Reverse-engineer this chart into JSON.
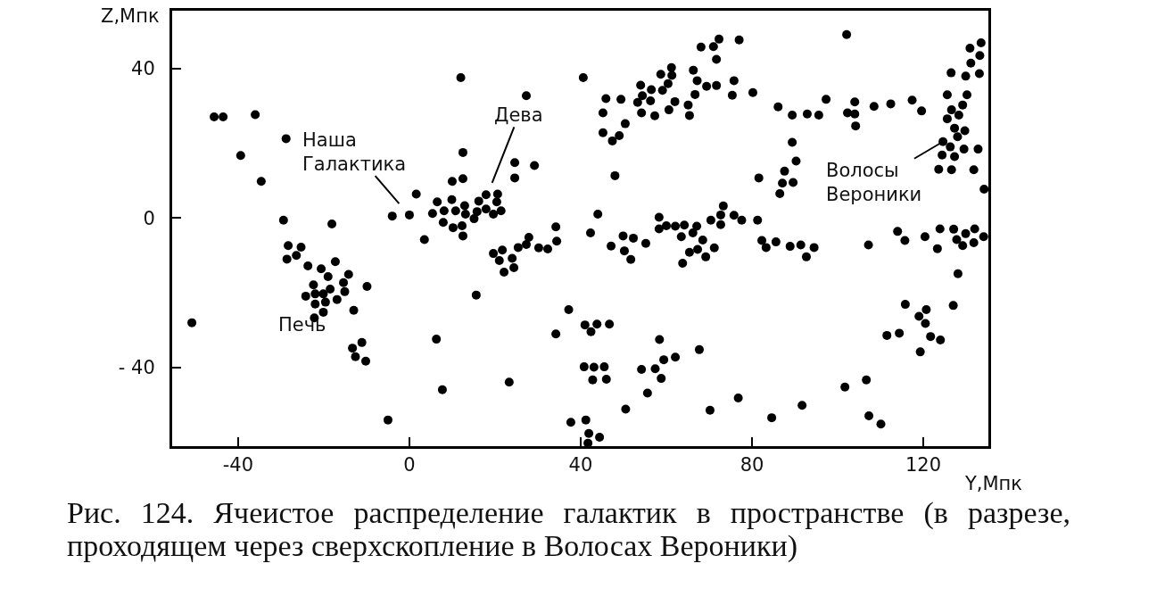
{
  "chart_data": {
    "type": "scatter",
    "xlabel": "Y,Мпк",
    "ylabel": "Z,Мпк",
    "color": "#000000",
    "marker": "circle",
    "grid": false,
    "legend": false,
    "xlim": [
      -55.4,
      135.2
    ],
    "ylim": [
      -61,
      55.4
    ],
    "xticks": [
      -40,
      0,
      40,
      80,
      120
    ],
    "yticks": [
      {
        "value": -40,
        "label": "- 40"
      },
      0,
      40
    ],
    "x": [
      -45.6,
      -43.5,
      -36.0,
      -28.8,
      -39.4,
      -34.6,
      -29.4,
      -18.1,
      -50.8,
      12.0,
      27.3,
      12.5,
      24.6,
      29.2,
      24.6,
      10.0,
      12.5,
      1.6,
      -4.0,
      0.0,
      6.5,
      9.9,
      5.4,
      8.1,
      10.8,
      12.9,
      13.1,
      16.2,
      17.9,
      20.6,
      20.4,
      17.9,
      15.8,
      19.6,
      21.4,
      15.1,
      7.9,
      10.2,
      12.3,
      12.5,
      3.5,
      34.2,
      34.4,
      27.9,
      27.3,
      25.4,
      30.2,
      32.3,
      19.6,
      21.7,
      21.0,
      24.0,
      24.4,
      22.1,
      15.6,
      37.2,
      34.2,
      6.3,
      7.7,
      23.3,
      -5.0,
      37.7,
      -28.3,
      -25.3,
      -28.6,
      -26.4,
      -23.7,
      -20.6,
      -17.3,
      -19.0,
      -14.2,
      -15.4,
      -22.4,
      -24.2,
      -22.0,
      -20.1,
      -18.5,
      -15.1,
      -9.9,
      -22.0,
      -19.6,
      -16.9,
      -13.0,
      -20.1,
      -22.2,
      -13.3,
      -11.1,
      -12.6,
      -10.2,
      44.0,
      58.3,
      42.3,
      47.1,
      49.9,
      52.3,
      55.2,
      50.2,
      51.7,
      58.3,
      60.0,
      62.1,
      64.2,
      67.1,
      66.2,
      63.5,
      68.5,
      65.4,
      67.3,
      71.2,
      69.2,
      63.8,
      70.4,
      72.7,
      72.7,
      75.8,
      77.6,
      81.3,
      82.3,
      83.3,
      85.6,
      88.9,
      91.4,
      94.5,
      92.7,
      107.2,
      114.0,
      115.7,
      120.4,
      123.3,
      123.9,
      127.1,
      127.8,
      129.2,
      129.9,
      131.8,
      132.0,
      134.1,
      128.1,
      127.0,
      115.8,
      120.7,
      119.0,
      120.5,
      111.5,
      114.4,
      121.7,
      124.0,
      119.3,
      41.0,
      43.8,
      42.4,
      46.7,
      58.4,
      67.7,
      40.8,
      43.1,
      45.5,
      42.8,
      46.0,
      59.4,
      62.1,
      54.2,
      57.4,
      58.8,
      55.6,
      50.5,
      70.2,
      76.8,
      84.6,
      91.7,
      101.7,
      106.7,
      107.3,
      110.1,
      41.2,
      41.9,
      44.4,
      41.7,
      40.6,
      45.9,
      49.4,
      45.2,
      50.4,
      45.2,
      47.4,
      49.0,
      48.0,
      54.0,
      56.5,
      54.4,
      53.3,
      56.3,
      54.2,
      57.3,
      58.7,
      61.2,
      61.3,
      59.1,
      60.4,
      62.0,
      60.6,
      65.1,
      65.4,
      66.3,
      67.2,
      66.7,
      69.4,
      71.7,
      68.1,
      71.0,
      72.3,
      71.7,
      77.0,
      75.8,
      75.4,
      80.2,
      86.1,
      89.4,
      92.9,
      95.6,
      97.3,
      102.3,
      104.0,
      104.0,
      104.2,
      108.5,
      112.4,
      117.4,
      119.6,
      102.1,
      89.4,
      90.3,
      87.6,
      87.1,
      89.6,
      86.5,
      81.6,
      73.3,
      133.5,
      130.9,
      133.2,
      131.1,
      126.5,
      129.9,
      133.1,
      125.6,
      130.2,
      129.2,
      126.6,
      128.3,
      125.6,
      127.3,
      129.7,
      128.0,
      124.6,
      126.3,
      129.5,
      132.8,
      124.4,
      127.3,
      123.6,
      126.6,
      131.8,
      134.2
    ],
    "values": [
      27.0,
      27.0,
      27.6,
      21.2,
      16.7,
      9.8,
      -0.6,
      -1.6,
      -28.0,
      37.5,
      32.7,
      17.5,
      14.8,
      14.0,
      10.7,
      9.8,
      10.5,
      6.4,
      0.5,
      0.8,
      4.3,
      4.9,
      1.2,
      1.9,
      1.9,
      3.3,
      1.0,
      4.5,
      6.2,
      6.4,
      4.3,
      2.4,
      1.7,
      1.0,
      1.9,
      -0.2,
      -1.2,
      -2.6,
      -2.1,
      -4.8,
      -5.8,
      -2.4,
      -6.2,
      -5.2,
      -7.1,
      -7.9,
      -8.0,
      -8.3,
      -9.5,
      -8.6,
      -11.4,
      -10.8,
      -13.3,
      -14.5,
      -20.6,
      -24.5,
      -31.0,
      -32.4,
      -45.9,
      -43.9,
      -54.0,
      -54.6,
      -7.4,
      -7.8,
      -11.0,
      -10.0,
      -12.8,
      -13.6,
      -11.7,
      -15.7,
      -15.1,
      -17.3,
      -17.9,
      -20.9,
      -20.3,
      -20.3,
      -19.0,
      -19.7,
      -18.3,
      -23.0,
      -22.5,
      -21.8,
      -24.7,
      -25.2,
      -26.7,
      -34.8,
      -33.3,
      -37.1,
      -38.3,
      1.0,
      0.2,
      -4.0,
      -7.5,
      -4.8,
      -5.4,
      -6.8,
      -8.8,
      -11.1,
      -2.9,
      -2.1,
      -2.2,
      -1.9,
      -2.2,
      -4.0,
      -5.0,
      -5.9,
      -9.2,
      -8.4,
      -8.0,
      -10.4,
      -12.1,
      -0.6,
      -1.8,
      0.8,
      0.7,
      -0.6,
      -0.6,
      -6.0,
      -7.9,
      -6.4,
      -7.6,
      -7.2,
      -7.9,
      -10.4,
      -7.2,
      -3.6,
      -6.0,
      -5.0,
      -8.2,
      -2.9,
      -3.0,
      -5.8,
      -7.4,
      -4.2,
      -6.6,
      -2.9,
      -5.0,
      -14.9,
      -23.4,
      -23.1,
      -24.5,
      -26.3,
      -28.2,
      -31.4,
      -30.8,
      -31.7,
      -32.6,
      -35.8,
      -28.6,
      -28.4,
      -30.4,
      -28.4,
      -32.5,
      -35.2,
      -39.8,
      -39.9,
      -39.8,
      -43.3,
      -43.1,
      -37.9,
      -37.2,
      -40.5,
      -40.3,
      -42.9,
      -46.8,
      -51.1,
      -51.4,
      -48.1,
      -53.4,
      -50.1,
      -45.2,
      -43.3,
      -52.9,
      -55.1,
      -54.0,
      -57.6,
      -58.6,
      -60.2,
      37.5,
      31.9,
      31.7,
      28.1,
      25.2,
      22.8,
      20.6,
      22.0,
      11.3,
      35.5,
      34.3,
      32.7,
      30.9,
      31.3,
      28.1,
      27.3,
      38.4,
      40.2,
      38.1,
      34.1,
      35.9,
      31.1,
      28.9,
      30.2,
      27.4,
      39.5,
      36.7,
      33.0,
      35.2,
      35.4,
      45.7,
      45.8,
      47.8,
      42.4,
      47.6,
      36.7,
      32.8,
      33.5,
      29.7,
      27.5,
      27.8,
      27.5,
      31.7,
      28.1,
      31.0,
      27.8,
      24.6,
      29.8,
      30.5,
      31.5,
      28.6,
      49.0,
      20.2,
      15.2,
      12.5,
      9.3,
      9.5,
      6.5,
      10.7,
      3.2,
      46.8,
      45.4,
      43.4,
      41.4,
      38.8,
      37.9,
      38.6,
      32.9,
      32.9,
      30.2,
      28.9,
      27.5,
      26.5,
      24.0,
      23.3,
      21.7,
      20.4,
      19.0,
      18.4,
      18.4,
      16.8,
      16.4,
      13.0,
      12.9,
      12.9,
      7.7
    ],
    "annotations": [
      "Наша Галактика",
      "Дева",
      {
        "text": "Волосы Вероники",
        "x": 124.6,
        "y": 20.4
      },
      "Печь",
      "Рис. 124. Ячеистое распределение галактик в пространстве (в разрезе, проходящем через сверхскопление в Волосах Вероники)"
    ]
  }
}
